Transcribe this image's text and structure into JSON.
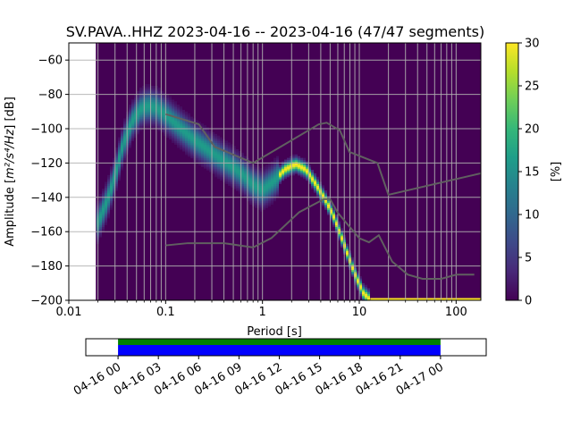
{
  "chart_data": {
    "type": "heatmap",
    "title": "SV.PAVA..HHZ   2023-04-16 -- 2023-04-16  (47/47 segments)",
    "xlabel": "Period [s]",
    "ylabel_prefix": "Amplitude [",
    "ylabel_math": "m²/s⁴/Hz",
    "ylabel_suffix": "] [dB]",
    "x_scale": "log",
    "xlim": [
      0.01,
      180
    ],
    "ylim": [
      -200,
      -50
    ],
    "x_ticks": [
      {
        "value": 0.01,
        "label": "0.01"
      },
      {
        "value": 0.1,
        "label": "0.1"
      },
      {
        "value": 1,
        "label": "1"
      },
      {
        "value": 10,
        "label": "10"
      },
      {
        "value": 100,
        "label": "100"
      }
    ],
    "y_ticks": [
      -60,
      -80,
      -100,
      -120,
      -140,
      -160,
      -180,
      -200
    ],
    "grid": true,
    "data_start_period": 0.019,
    "colorbar": {
      "label": "[%]",
      "range": [
        0,
        30
      ],
      "ticks": [
        0,
        5,
        10,
        15,
        20,
        25,
        30
      ],
      "colormap": [
        "#440154",
        "#482878",
        "#3e4989",
        "#31688e",
        "#26828e",
        "#1f9e89",
        "#35b779",
        "#6ece58",
        "#b5de2b",
        "#fde725"
      ]
    },
    "noise_models": {
      "color": "#606060",
      "high": {
        "name": "NHNM",
        "points": [
          [
            0.1,
            -91.5
          ],
          [
            0.22,
            -97.4
          ],
          [
            0.32,
            -110.5
          ],
          [
            0.8,
            -120
          ],
          [
            3.8,
            -97.5
          ],
          [
            4.6,
            -96.5
          ],
          [
            6.3,
            -101
          ],
          [
            7.9,
            -113.5
          ],
          [
            15.4,
            -120
          ],
          [
            20,
            -138.5
          ],
          [
            354.8,
            -126
          ]
        ]
      },
      "low": {
        "name": "NLNM",
        "points": [
          [
            0.1,
            -168
          ],
          [
            0.17,
            -166.7
          ],
          [
            0.4,
            -166.7
          ],
          [
            0.8,
            -169.2
          ],
          [
            1.24,
            -163.7
          ],
          [
            2.4,
            -148.6
          ],
          [
            4.3,
            -141.1
          ],
          [
            5.0,
            -141.1
          ],
          [
            6.0,
            -149
          ],
          [
            10,
            -163.8
          ],
          [
            12.6,
            -166.2
          ],
          [
            15.9,
            -162.1
          ],
          [
            21.9,
            -177.5
          ],
          [
            31.6,
            -185
          ],
          [
            45,
            -187.5
          ],
          [
            70,
            -187.5
          ],
          [
            101,
            -185
          ],
          [
            154,
            -185
          ]
        ]
      }
    },
    "ppsd_mode": {
      "points": [
        [
          0.02,
          -155
        ],
        [
          0.025,
          -142
        ],
        [
          0.03,
          -128
        ],
        [
          0.036,
          -110
        ],
        [
          0.045,
          -96
        ],
        [
          0.055,
          -89
        ],
        [
          0.065,
          -87
        ],
        [
          0.08,
          -88
        ],
        [
          0.1,
          -92
        ],
        [
          0.15,
          -101
        ],
        [
          0.2,
          -107
        ],
        [
          0.3,
          -114
        ],
        [
          0.45,
          -121
        ],
        [
          0.6,
          -126
        ],
        [
          0.8,
          -133
        ],
        [
          1.0,
          -136
        ],
        [
          1.3,
          -131
        ],
        [
          1.7,
          -124
        ],
        [
          2.2,
          -121
        ],
        [
          2.8,
          -124
        ],
        [
          3.5,
          -132
        ],
        [
          4.5,
          -142
        ],
        [
          5.5,
          -152
        ],
        [
          7,
          -168
        ],
        [
          9,
          -185
        ],
        [
          11,
          -196
        ],
        [
          13,
          -200
        ]
      ]
    },
    "ppsd_width_db": 11,
    "floor_line": {
      "color": "#fde725",
      "x_range": [
        13,
        180
      ],
      "y": -200
    },
    "timeline": {
      "tick_labels": [
        "04-16 00",
        "04-16 03",
        "04-16 06",
        "04-16 09",
        "04-16 12",
        "04-16 15",
        "04-16 18",
        "04-16 21",
        "04-17 00"
      ],
      "xlim_hours": [
        -2.4,
        27.4
      ],
      "coverage_hours": [
        0,
        24
      ],
      "bar_colors": [
        "#008000",
        "#0000ff"
      ]
    }
  }
}
